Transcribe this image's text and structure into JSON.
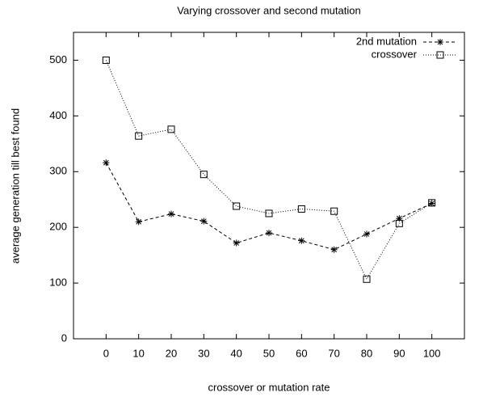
{
  "chart_data": {
    "type": "line",
    "title": "Varying crossover and second mutation",
    "xlabel": "crossover or mutation rate",
    "ylabel": "average generation till best found",
    "x": [
      0,
      10,
      20,
      30,
      40,
      50,
      60,
      70,
      80,
      90,
      100
    ],
    "series": [
      {
        "name": "2nd mutation",
        "color": "#000000",
        "line_style": "dashed",
        "marker": "star",
        "values": [
          316,
          210,
          224,
          211,
          172,
          190,
          176,
          160,
          188,
          216,
          243
        ]
      },
      {
        "name": "crossover",
        "color": "#000000",
        "line_style": "dotted",
        "marker": "square",
        "values": [
          500,
          364,
          376,
          295,
          238,
          225,
          233,
          229,
          107,
          207,
          244
        ]
      }
    ],
    "xlim": [
      -10,
      110
    ],
    "xticks": [
      0,
      10,
      20,
      30,
      40,
      50,
      60,
      70,
      80,
      90,
      100
    ],
    "ylim": [
      0,
      550
    ],
    "yticks": [
      0,
      100,
      200,
      300,
      400,
      500
    ],
    "legend": "upper-right"
  }
}
